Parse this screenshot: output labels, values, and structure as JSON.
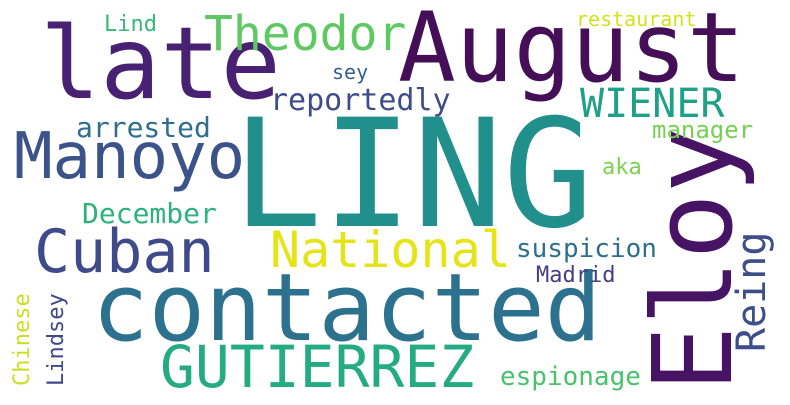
{
  "words": {
    "ling": {
      "text": "LING",
      "color": "#21908d"
    },
    "august": {
      "text": "August",
      "color": "#440f56"
    },
    "late": {
      "text": "late",
      "color": "#482173"
    },
    "contacted": {
      "text": "contacted",
      "color": "#2c728e"
    },
    "eloy": {
      "text": "Eloy",
      "color": "#471365"
    },
    "manoyo": {
      "text": "Manoyo",
      "color": "#3b528b"
    },
    "cuban": {
      "text": "Cuban",
      "color": "#3e4a89"
    },
    "gutierrez": {
      "text": "GUTIERREZ",
      "color": "#25ab82"
    },
    "theodor": {
      "text": "Theodor",
      "color": "#5ec962"
    },
    "national": {
      "text": "National",
      "color": "#e5e419"
    },
    "wiener": {
      "text": "WIENER",
      "color": "#1fa187"
    },
    "reing": {
      "text": "Reing",
      "color": "#3d4e8a"
    },
    "reportedly": {
      "text": "reportedly",
      "color": "#3e4c8a"
    },
    "arrested": {
      "text": "arrested",
      "color": "#2e6f8e"
    },
    "december": {
      "text": "December",
      "color": "#2db27d"
    },
    "manager": {
      "text": "manager",
      "color": "#75d054"
    },
    "espionage": {
      "text": "espionage",
      "color": "#4ac16d"
    },
    "suspicion": {
      "text": "suspicion",
      "color": "#2e6e8e"
    },
    "lindsey": {
      "text": "Lindsey",
      "color": "#3f4889"
    },
    "chinese": {
      "text": "Chinese",
      "color": "#c8e020"
    },
    "lind": {
      "text": "Lind",
      "color": "#38b977"
    },
    "restaurant": {
      "text": "restaurant",
      "color": "#d2e21b"
    },
    "sey": {
      "text": "sey",
      "color": "#355f8d"
    },
    "aka": {
      "text": "aka",
      "color": "#7ad151"
    },
    "madrid": {
      "text": "Madrid",
      "color": "#433e85"
    }
  }
}
